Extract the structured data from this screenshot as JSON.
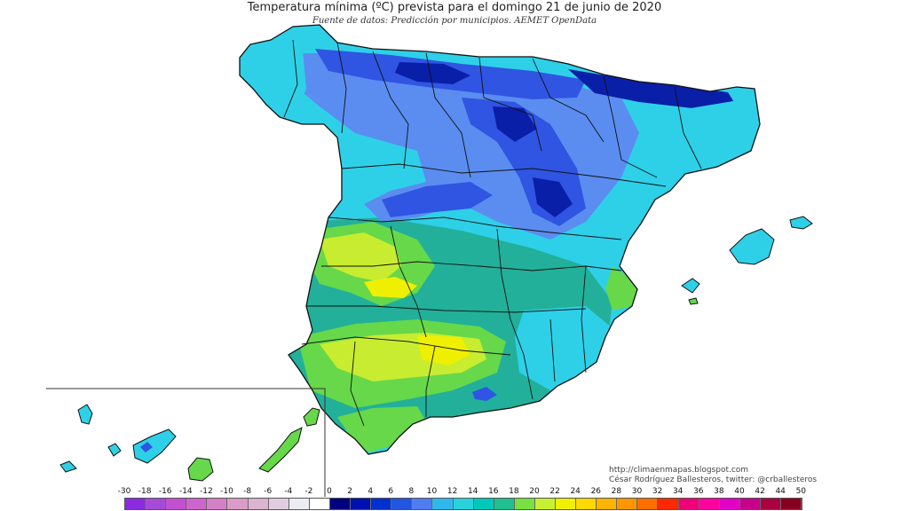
{
  "title": "Temperatura mínima (ºC) prevista para el domingo 21 de junio de 2020",
  "subtitle": "Fuente de datos: Predicción por municipios. AEMET OpenData",
  "credits": {
    "url": "http://climaenmapas.blogspot.com",
    "author": "César Rodríguez Ballesteros, twitter: @crballesteros"
  },
  "legend": {
    "labels": [
      "-30",
      "-18",
      "-16",
      "-14",
      "-12",
      "-10",
      "-8",
      "-6",
      "-4",
      "-2",
      "0",
      "2",
      "4",
      "6",
      "8",
      "10",
      "12",
      "14",
      "16",
      "18",
      "20",
      "22",
      "24",
      "26",
      "28",
      "30",
      "32",
      "34",
      "36",
      "38",
      "40",
      "42",
      "44",
      "50"
    ],
    "colors": [
      "#8a2be2",
      "#a54bd6",
      "#c050d0",
      "#cc66cc",
      "#d480c8",
      "#d99cc8",
      "#dbb4cf",
      "#e2cde0",
      "#ececf2",
      "#ffffff",
      "#000080",
      "#0010b0",
      "#0030d0",
      "#2255e0",
      "#4f7df0",
      "#30b8ec",
      "#28d2dc",
      "#00c8b8",
      "#20c090",
      "#78e040",
      "#c8f032",
      "#f0f000",
      "#ffd800",
      "#ffb400",
      "#ff9600",
      "#ff6e00",
      "#ff2800",
      "#f00078",
      "#ff00a0",
      "#e000c8",
      "#c8008c",
      "#aa0040",
      "#880020"
    ]
  },
  "map": {
    "palette": {
      "sea": "#ffffff",
      "dark_blue": "#0a1fa8",
      "blue": "#2f55e2",
      "light_blue": "#5b8df0",
      "cyan": "#2ed0e8",
      "turquoise": "#26c2c0",
      "teal": "#22b09a",
      "green": "#66d84a",
      "yellow_green": "#c8ec30",
      "yellow": "#eef000",
      "border": "#111111"
    }
  }
}
